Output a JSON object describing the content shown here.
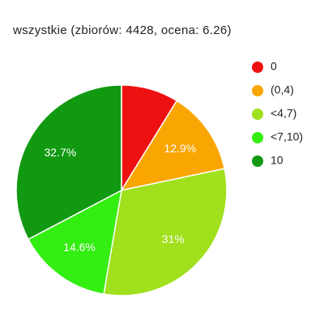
{
  "chart_data": {
    "type": "pie",
    "title": "wszystkie (zbiorów: 4428, ocena: 6.26)",
    "categories": [
      "0",
      "(0,4)",
      "<4,7)",
      "<7,10)",
      "10"
    ],
    "values": [
      8.8,
      12.9,
      31,
      14.6,
      32.7
    ],
    "value_labels": [
      null,
      "12.9%",
      "31%",
      "14.6%",
      "32.7%"
    ],
    "colors": [
      "#ee1111",
      "#f9a602",
      "#a0e01c",
      "#33ee11",
      "#119911"
    ],
    "legend": "right"
  }
}
